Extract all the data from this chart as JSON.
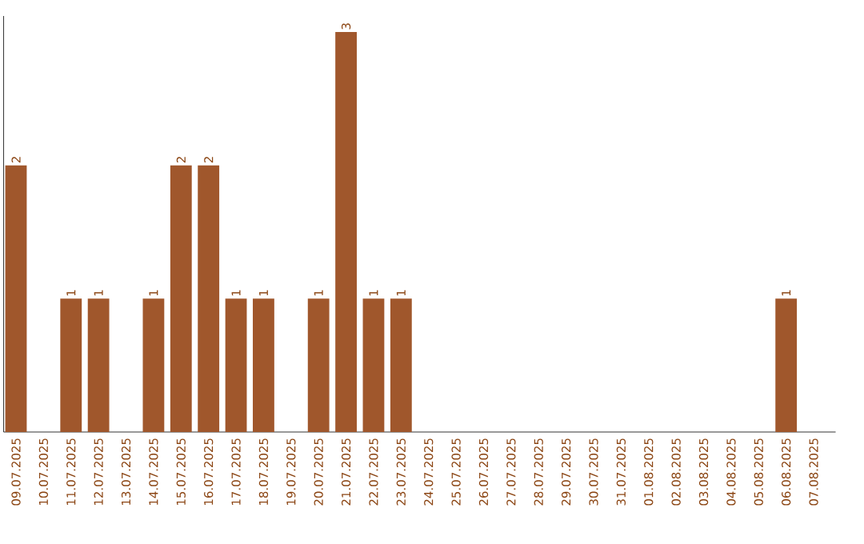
{
  "chart_data": {
    "type": "bar",
    "categories": [
      "09.07.2025",
      "10.07.2025",
      "11.07.2025",
      "12.07.2025",
      "13.07.2025",
      "14.07.2025",
      "15.07.2025",
      "16.07.2025",
      "17.07.2025",
      "18.07.2025",
      "19.07.2025",
      "20.07.2025",
      "21.07.2025",
      "22.07.2025",
      "23.07.2025",
      "24.07.2025",
      "25.07.2025",
      "26.07.2025",
      "27.07.2025",
      "28.07.2025",
      "29.07.2025",
      "30.07.2025",
      "31.07.2025",
      "01.08.2025",
      "02.08.2025",
      "03.08.2025",
      "04.08.2025",
      "05.08.2025",
      "06.08.2025",
      "07.08.2025"
    ],
    "values": [
      2,
      0,
      1,
      1,
      0,
      1,
      2,
      2,
      1,
      1,
      0,
      1,
      3,
      1,
      1,
      0,
      0,
      0,
      0,
      0,
      0,
      0,
      0,
      0,
      0,
      0,
      0,
      0,
      1,
      0
    ],
    "value_labels": [
      "2",
      null,
      "1",
      "1",
      null,
      "1",
      "2",
      "2",
      "1",
      "1",
      null,
      "1",
      "3",
      "1",
      "1",
      null,
      null,
      null,
      null,
      null,
      null,
      null,
      null,
      null,
      null,
      null,
      null,
      null,
      "1",
      null
    ],
    "color": "#a0572c"
  }
}
